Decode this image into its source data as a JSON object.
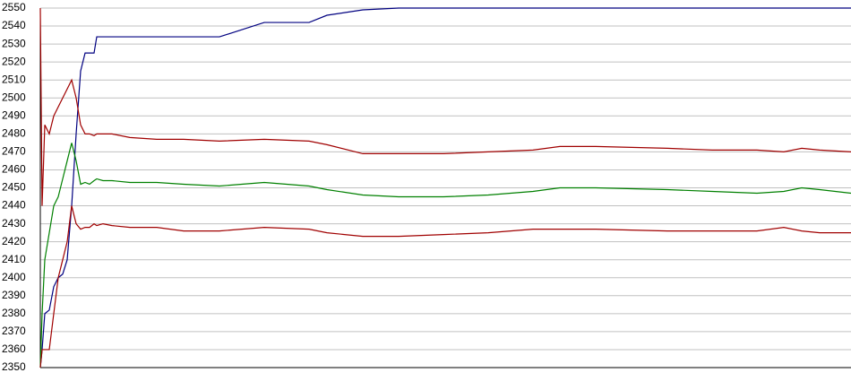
{
  "chart_data": {
    "type": "line",
    "x": [
      0,
      2,
      5,
      10,
      15,
      20,
      25,
      30,
      35,
      40,
      45,
      50,
      55,
      60,
      63,
      70,
      80,
      100,
      130,
      160,
      200,
      250,
      300,
      320,
      360,
      400,
      450,
      500,
      550,
      580,
      620,
      700,
      750,
      800,
      830,
      850,
      870,
      905
    ],
    "xlim": [
      0,
      905
    ],
    "ylim": [
      2350,
      2550
    ],
    "yticks": [
      2350,
      2360,
      2370,
      2380,
      2390,
      2400,
      2410,
      2420,
      2430,
      2440,
      2450,
      2460,
      2470,
      2480,
      2490,
      2500,
      2510,
      2520,
      2530,
      2540,
      2550
    ],
    "grid": true,
    "series": [
      {
        "color": "#000080",
        "values": [
          2350,
          2360,
          2380,
          2382,
          2395,
          2400,
          2402,
          2410,
          2440,
          2480,
          2515,
          2525,
          2525,
          2525,
          2534,
          2534,
          2534,
          2534,
          2534,
          2534,
          2534,
          2542,
          2542,
          2546,
          2549,
          2550,
          2550,
          2550,
          2550,
          2550,
          2550,
          2550,
          2550,
          2550,
          2550,
          2550,
          2550,
          2550
        ]
      },
      {
        "color": "#a00000",
        "values": [
          2550,
          2440,
          2485,
          2480,
          2490,
          2495,
          2500,
          2505,
          2510,
          2500,
          2485,
          2480,
          2480,
          2479,
          2480,
          2480,
          2480,
          2478,
          2477,
          2477,
          2476,
          2477,
          2476,
          2474,
          2469,
          2469,
          2469,
          2470,
          2471,
          2473,
          2473,
          2472,
          2471,
          2471,
          2470,
          2472,
          2471,
          2470
        ]
      },
      {
        "color": "#008000",
        "values": [
          2350,
          2380,
          2410,
          2425,
          2440,
          2445,
          2455,
          2465,
          2475,
          2465,
          2452,
          2453,
          2452,
          2454,
          2455,
          2454,
          2454,
          2453,
          2453,
          2452,
          2451,
          2453,
          2451,
          2449,
          2446,
          2445,
          2445,
          2446,
          2448,
          2450,
          2450,
          2449,
          2448,
          2447,
          2448,
          2450,
          2449,
          2447
        ]
      },
      {
        "color": "#a00000",
        "values": [
          2350,
          2360,
          2360,
          2360,
          2380,
          2400,
          2410,
          2420,
          2440,
          2430,
          2427,
          2428,
          2428,
          2430,
          2429,
          2430,
          2429,
          2428,
          2428,
          2426,
          2426,
          2428,
          2427,
          2425,
          2423,
          2423,
          2424,
          2425,
          2427,
          2427,
          2427,
          2426,
          2426,
          2426,
          2428,
          2426,
          2425,
          2425
        ]
      }
    ]
  }
}
